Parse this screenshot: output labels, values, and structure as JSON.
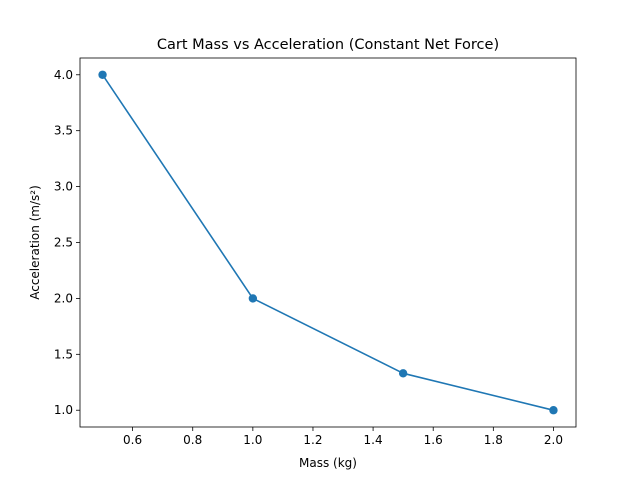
{
  "chart_data": {
    "type": "line",
    "title": "Cart Mass vs Acceleration (Constant Net Force)",
    "xlabel": "Mass (kg)",
    "ylabel": "Acceleration (m/s²)",
    "x": [
      0.5,
      1.0,
      1.5,
      2.0
    ],
    "series": [
      {
        "values": [
          4.0,
          2.0,
          1.33,
          1.0
        ],
        "color": "#1f77b4",
        "marker": "circle"
      }
    ],
    "xlim": [
      0.425,
      2.075
    ],
    "ylim": [
      0.85,
      4.15
    ],
    "xticks": [
      0.6,
      0.8,
      1.0,
      1.2,
      1.4,
      1.6,
      1.8,
      2.0
    ],
    "xtick_labels": [
      "0.6",
      "0.8",
      "1.0",
      "1.2",
      "1.4",
      "1.6",
      "1.8",
      "2.0"
    ],
    "yticks": [
      1.0,
      1.5,
      2.0,
      2.5,
      3.0,
      3.5,
      4.0
    ],
    "ytick_labels": [
      "1.0",
      "1.5",
      "2.0",
      "2.5",
      "3.0",
      "3.5",
      "4.0"
    ],
    "grid": false,
    "legend": "none"
  }
}
